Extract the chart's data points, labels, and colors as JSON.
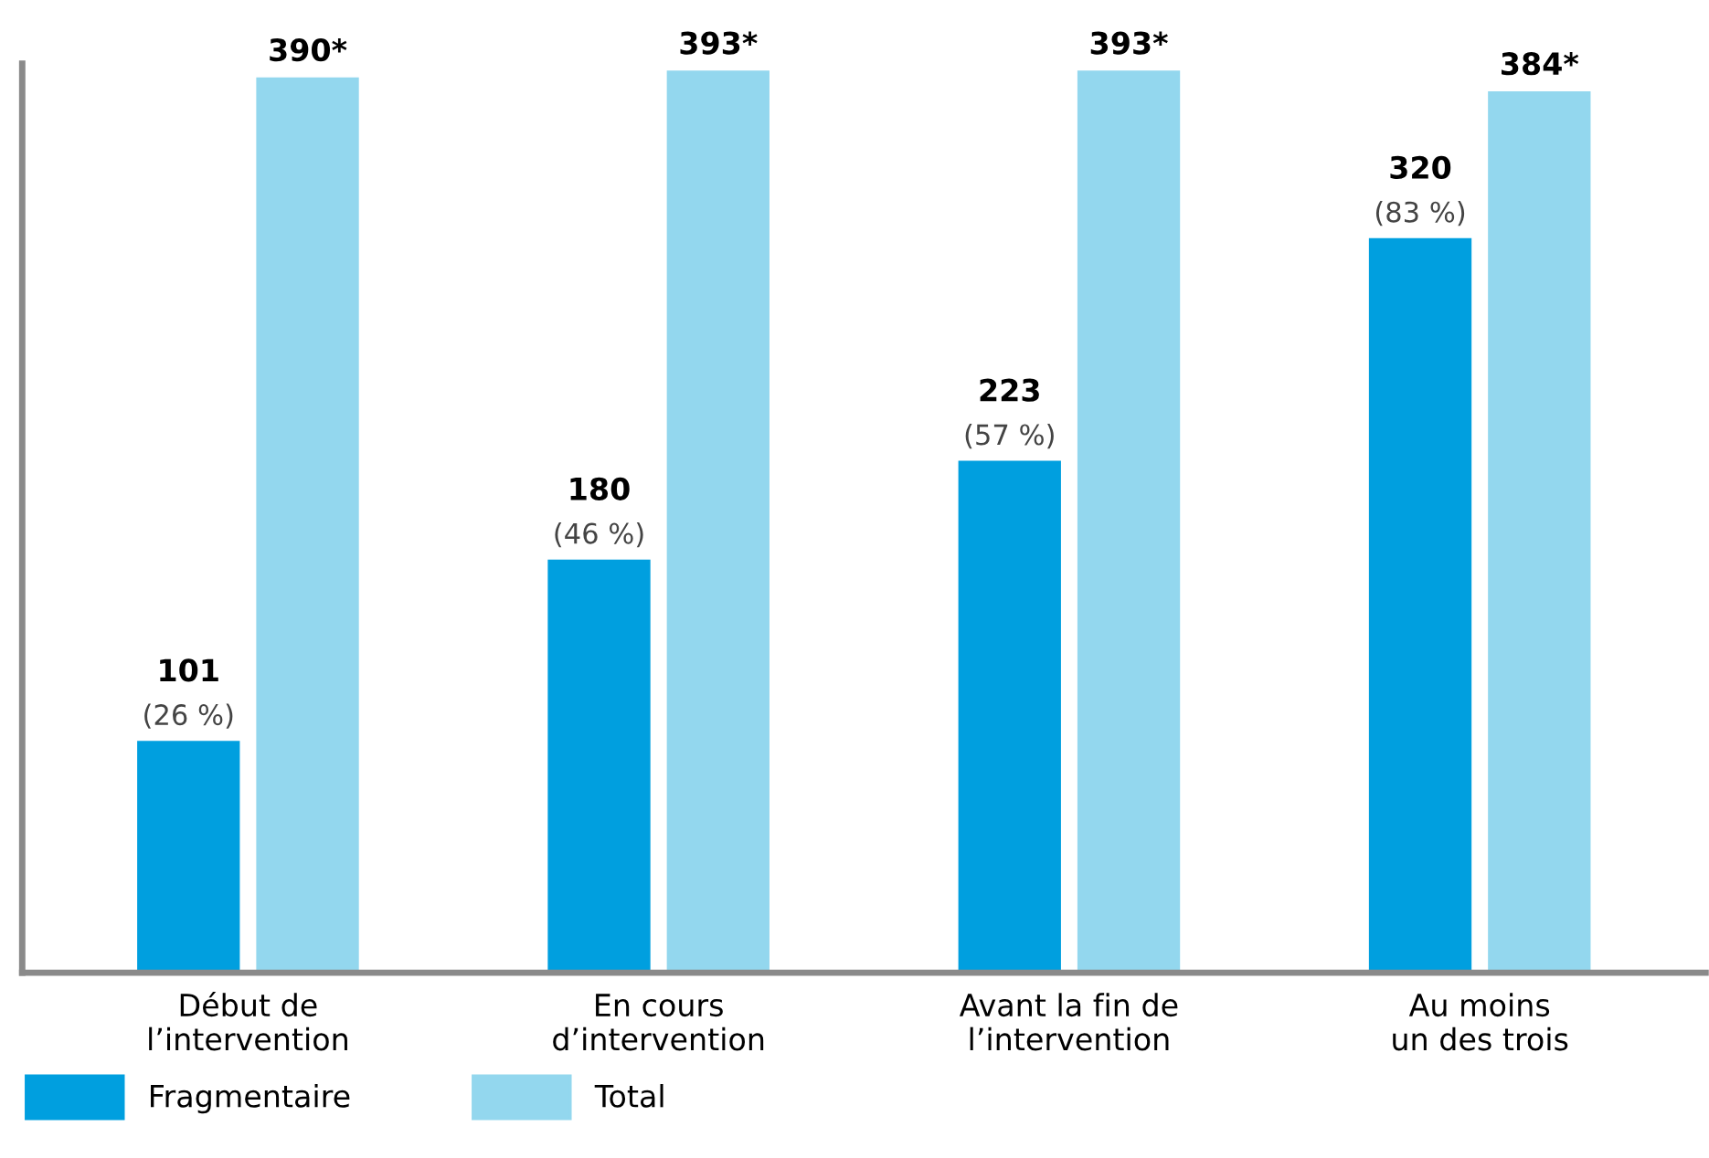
{
  "chart_data": {
    "type": "bar",
    "categories": [
      "Début de\nl’intervention",
      "En cours\nd’intervention",
      "Avant la fin de\nl’intervention",
      "Au moins\nun des trois"
    ],
    "series": [
      {
        "name": "Fragmentaire",
        "color": "#009fdf",
        "values": [
          101,
          180,
          223,
          320
        ],
        "value_labels": [
          "101\n(26 %)",
          "180\n(46 %)",
          "223\n(57 %)",
          "320\n(83 %)"
        ]
      },
      {
        "name": "Total",
        "color": "#93d7ee",
        "values": [
          390,
          393,
          393,
          384
        ],
        "value_labels": [
          "390*",
          "393*",
          "393*",
          "384*"
        ]
      }
    ],
    "ylim": [
      0,
      396
    ],
    "tick_labels": "x",
    "grid": false,
    "legend": "bottom left"
  }
}
